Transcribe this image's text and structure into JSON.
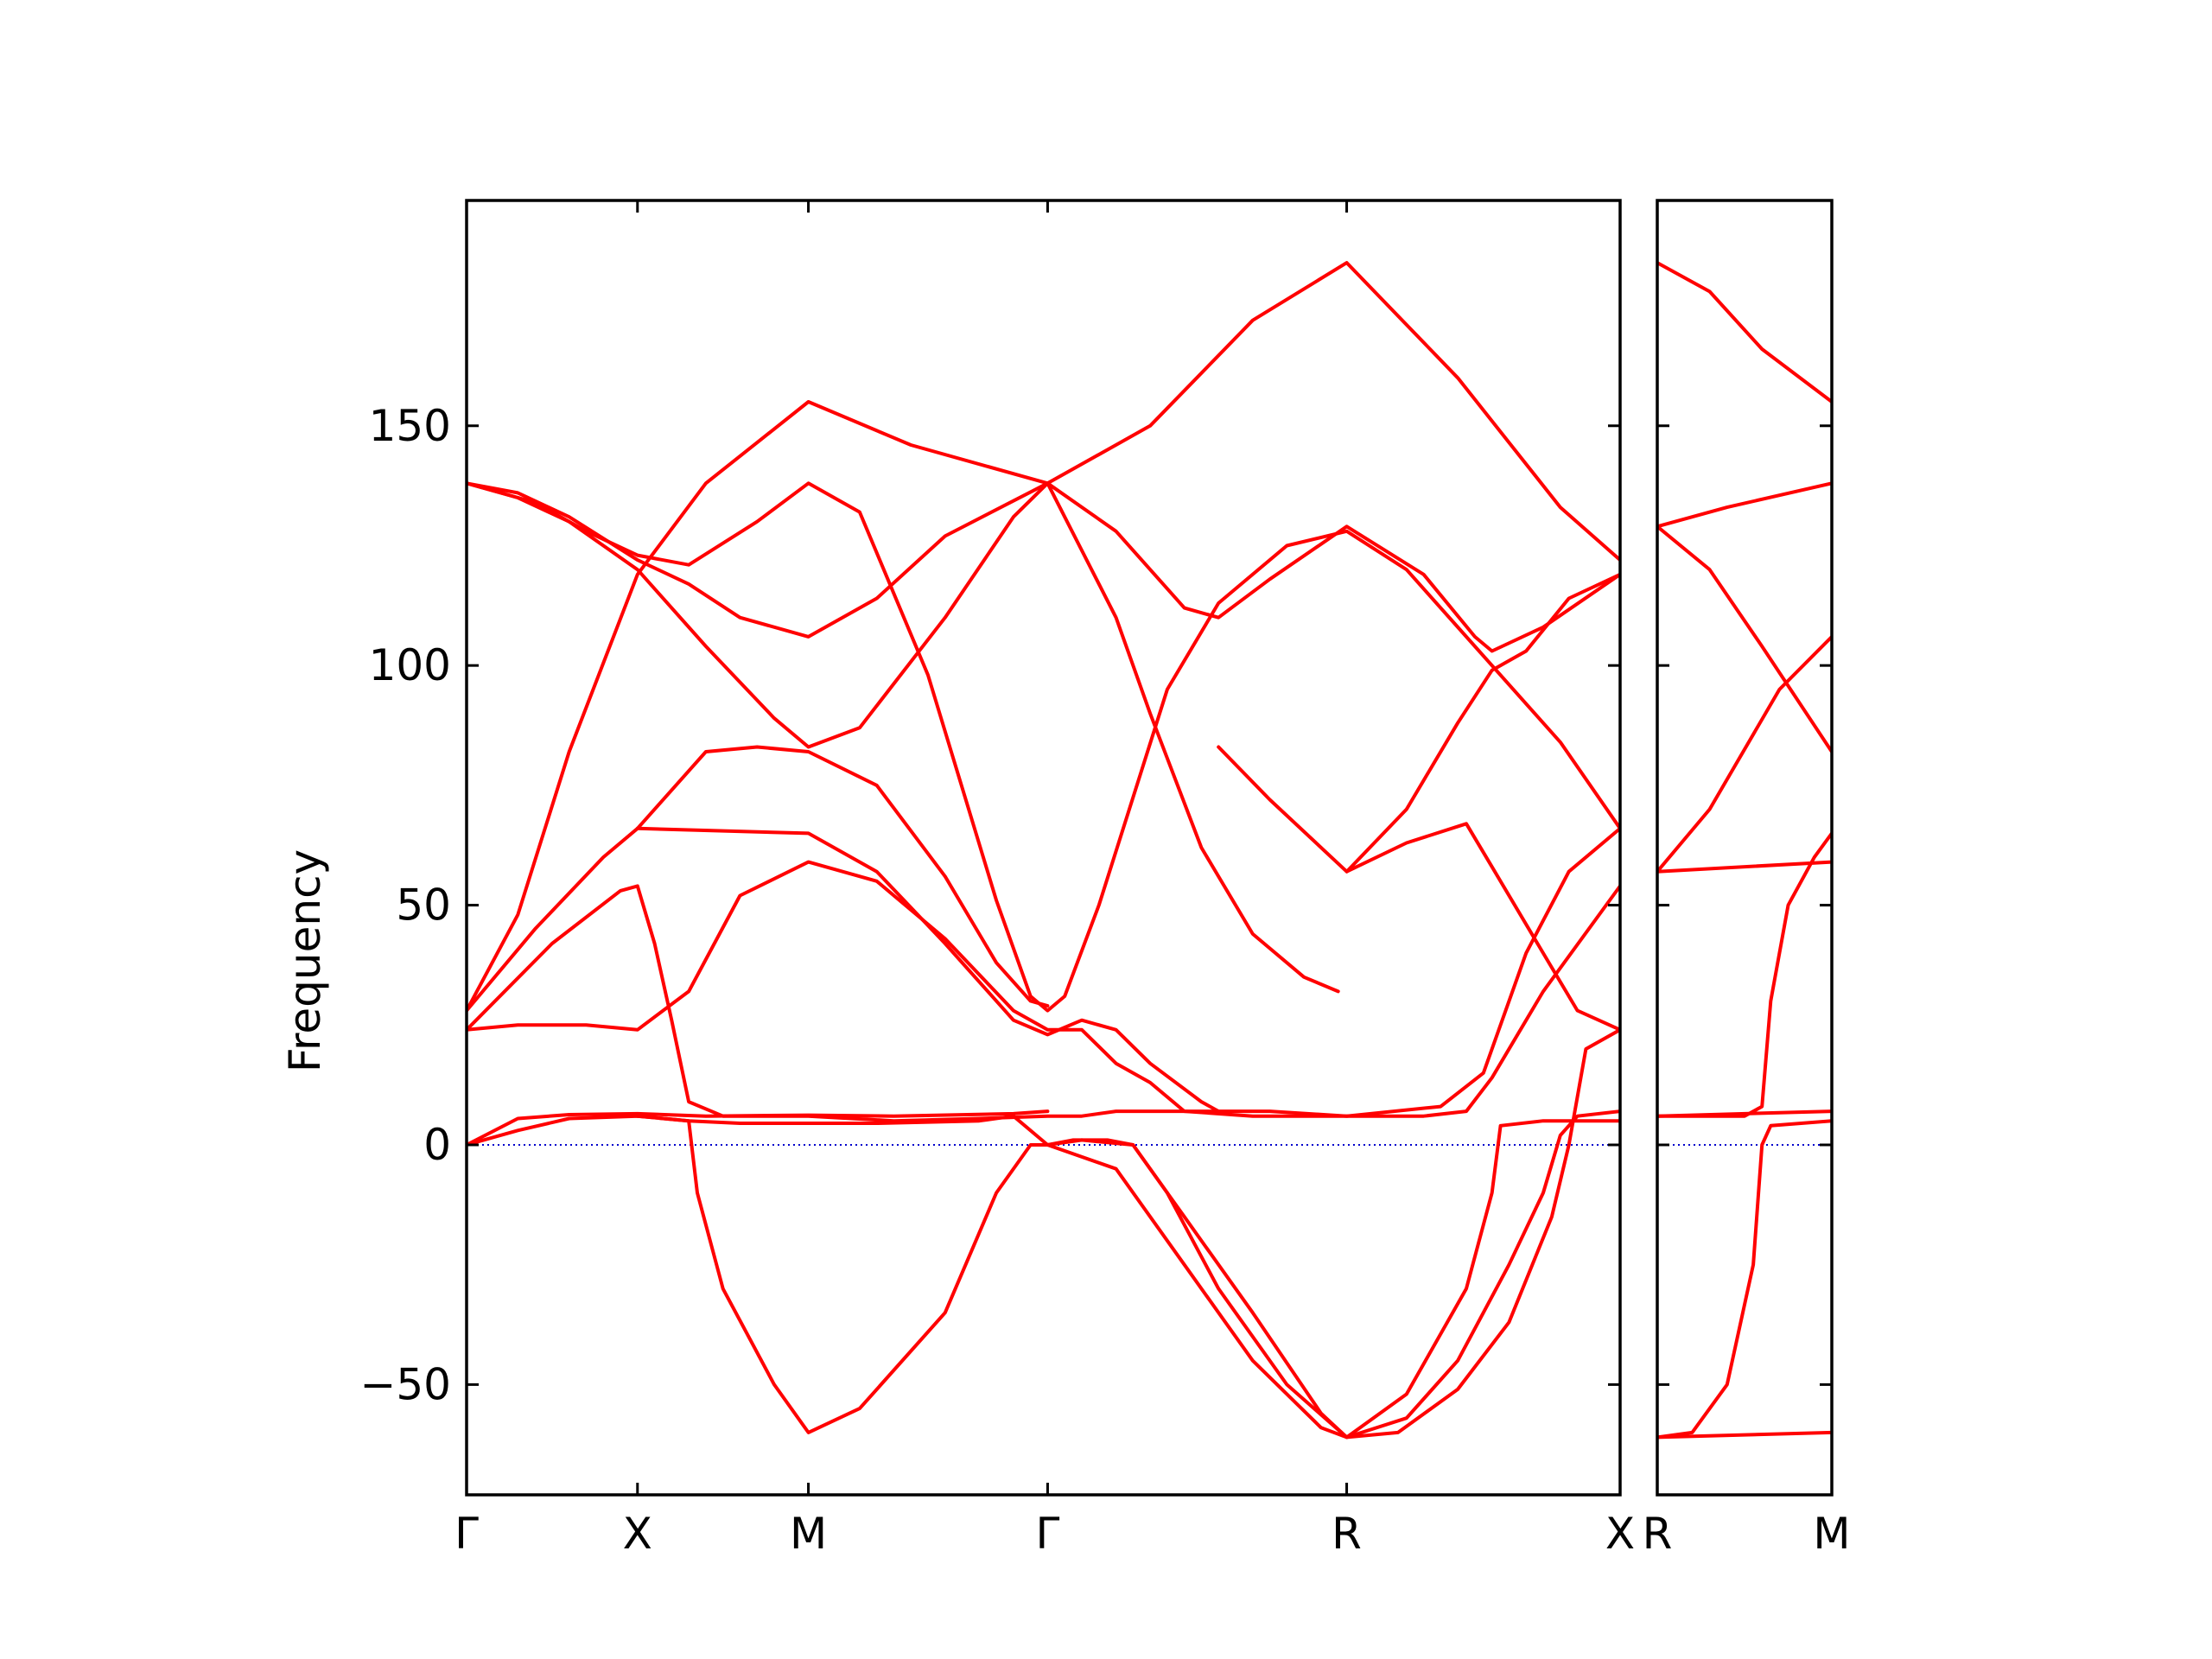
{
  "chart_data": {
    "type": "line",
    "ylabel": "Frequency",
    "ylim": [
      -73,
      197
    ],
    "yticks": [
      -50,
      0,
      50,
      100,
      150
    ],
    "ytick_labels": [
      "−50",
      "0",
      "50",
      "100",
      "150"
    ],
    "band_color": "#ff0000",
    "zero_line_color": "#0000cc",
    "panels": [
      {
        "xticks": [
          0,
          1,
          2,
          3.4,
          5.15,
          6.75
        ],
        "xtick_labels": [
          "Γ",
          "X",
          "M",
          "Γ",
          "R",
          "X"
        ],
        "xlim": [
          0,
          6.75
        ],
        "bands": [
          [
            [
              0,
              28
            ],
            [
              0.3,
              48
            ],
            [
              0.6,
              82
            ],
            [
              1,
              119
            ],
            [
              1.4,
              138
            ],
            [
              2,
              155
            ],
            [
              2.6,
              146
            ],
            [
              3.4,
              138
            ],
            [
              4,
              150
            ],
            [
              4.6,
              172
            ],
            [
              5.15,
              184
            ],
            [
              5.8,
              160
            ],
            [
              6.4,
              133
            ],
            [
              6.75,
              122
            ]
          ],
          [
            [
              0,
              138
            ],
            [
              0.3,
              136
            ],
            [
              0.6,
              131
            ],
            [
              1,
              122
            ],
            [
              1.3,
              117
            ],
            [
              1.6,
              110
            ],
            [
              2,
              106
            ],
            [
              2.4,
              114
            ],
            [
              2.8,
              127
            ],
            [
              3.4,
              138
            ],
            [
              3.8,
              128
            ],
            [
              4.2,
              112
            ],
            [
              4.4,
              110
            ],
            [
              4.7,
              118
            ],
            [
              5.15,
              129
            ],
            [
              5.6,
              119
            ],
            [
              5.9,
              106
            ],
            [
              6,
              103
            ],
            [
              6.3,
              108
            ],
            [
              6.75,
              119
            ]
          ],
          [
            [
              0,
              138
            ],
            [
              0.3,
              135
            ],
            [
              0.6,
              130
            ],
            [
              1,
              120
            ],
            [
              1.4,
              104
            ],
            [
              1.8,
              89
            ],
            [
              2,
              83
            ],
            [
              2.3,
              87
            ],
            [
              2.8,
              110
            ],
            [
              3.2,
              131
            ],
            [
              3.4,
              138
            ],
            [
              3.5,
              131
            ],
            [
              3.8,
              110
            ],
            [
              4,
              90
            ],
            [
              4.3,
              62
            ],
            [
              4.6,
              44
            ],
            [
              4.9,
              35
            ],
            [
              5.1,
              32
            ]
          ],
          [
            [
              0,
              138
            ],
            [
              0.4,
              134
            ],
            [
              0.7,
              128
            ],
            [
              1,
              123
            ],
            [
              1.3,
              121
            ],
            [
              1.7,
              130
            ],
            [
              2,
              138
            ],
            [
              2.3,
              132
            ],
            [
              2.7,
              98
            ],
            [
              3.1,
              51
            ],
            [
              3.3,
              31
            ],
            [
              3.4,
              28
            ],
            [
              3.5,
              31
            ],
            [
              3.7,
              50
            ],
            [
              4.1,
              95
            ],
            [
              4.4,
              113
            ],
            [
              4.8,
              125
            ],
            [
              5.15,
              128
            ],
            [
              5.5,
              120
            ],
            [
              5.9,
              104
            ],
            [
              6.4,
              84
            ],
            [
              6.75,
              66
            ]
          ],
          [
            [
              0,
              28
            ],
            [
              0.4,
              45
            ],
            [
              0.8,
              60
            ],
            [
              1,
              66
            ],
            [
              1.4,
              82
            ],
            [
              1.7,
              83
            ],
            [
              2,
              82
            ],
            [
              2.4,
              75
            ],
            [
              2.8,
              56
            ],
            [
              3.1,
              38
            ],
            [
              3.3,
              30
            ],
            [
              3.4,
              29
            ]
          ],
          [
            [
              0,
              24
            ],
            [
              0.5,
              42
            ],
            [
              0.9,
              53
            ],
            [
              1,
              54
            ],
            [
              1.1,
              42
            ],
            [
              1.2,
              26
            ],
            [
              1.3,
              9
            ],
            [
              1.5,
              6
            ],
            [
              2,
              6
            ],
            [
              2.5,
              5
            ],
            [
              3,
              5.5
            ],
            [
              3.4,
              6
            ],
            [
              3.6,
              6
            ],
            [
              3.8,
              7
            ],
            [
              4.3,
              7
            ],
            [
              4.7,
              7
            ],
            [
              5.15,
              6
            ],
            [
              5.6,
              6
            ],
            [
              5.85,
              7
            ],
            [
              6,
              14
            ],
            [
              6.3,
              32
            ],
            [
              6.75,
              54
            ]
          ],
          [
            [
              0,
              24
            ],
            [
              0.3,
              25
            ],
            [
              0.7,
              25
            ],
            [
              1,
              24
            ],
            [
              1.3,
              32
            ],
            [
              1.6,
              52
            ],
            [
              2,
              59
            ],
            [
              2.4,
              55
            ],
            [
              2.8,
              43
            ],
            [
              3.2,
              28
            ],
            [
              3.4,
              24
            ],
            [
              3.6,
              24
            ],
            [
              3.8,
              17
            ],
            [
              4,
              13
            ],
            [
              4.2,
              7
            ],
            [
              4.6,
              6
            ],
            [
              5.15,
              6
            ],
            [
              5.7,
              8
            ],
            [
              5.95,
              15
            ],
            [
              6.2,
              40
            ],
            [
              6.45,
              57
            ],
            [
              6.75,
              66
            ]
          ],
          [
            [
              1,
              66
            ],
            [
              2,
              65
            ],
            [
              2.4,
              57
            ],
            [
              2.8,
              42
            ],
            [
              3.2,
              26
            ],
            [
              3.4,
              23
            ],
            [
              3.6,
              26
            ],
            [
              3.8,
              24
            ],
            [
              4,
              17
            ],
            [
              4.3,
              9
            ],
            [
              4.4,
              7
            ]
          ],
          [
            [
              0,
              0
            ],
            [
              0.3,
              3
            ],
            [
              0.6,
              5.5
            ],
            [
              1,
              6
            ],
            [
              1.3,
              5
            ],
            [
              1.6,
              4.5
            ],
            [
              2,
              4.5
            ],
            [
              2.4,
              4.5
            ],
            [
              3,
              5
            ],
            [
              3.2,
              6
            ],
            [
              3.4,
              0
            ]
          ],
          [
            [
              0,
              0
            ],
            [
              0.3,
              5.5
            ],
            [
              0.6,
              6.3
            ],
            [
              1,
              6.5
            ],
            [
              1.4,
              6
            ],
            [
              2,
              6.2
            ],
            [
              2.5,
              6
            ],
            [
              3.2,
              6.5
            ],
            [
              3.4,
              7
            ]
          ],
          [
            [
              1,
              6
            ],
            [
              1.3,
              5
            ],
            [
              1.35,
              -10
            ],
            [
              1.5,
              -30
            ],
            [
              1.8,
              -50
            ],
            [
              2,
              -60
            ],
            [
              2.3,
              -55
            ],
            [
              2.8,
              -35
            ],
            [
              3.1,
              -10
            ],
            [
              3.3,
              0
            ],
            [
              3.4,
              0
            ]
          ],
          [
            [
              3.4,
              0
            ],
            [
              3.55,
              1
            ],
            [
              3.75,
              1
            ],
            [
              3.9,
              0
            ],
            [
              4.1,
              -10
            ],
            [
              4.4,
              -30
            ],
            [
              4.8,
              -50
            ],
            [
              5.15,
              -61
            ],
            [
              5.5,
              -57
            ],
            [
              5.8,
              -45
            ],
            [
              6.1,
              -25
            ],
            [
              6.3,
              -10
            ],
            [
              6.4,
              2
            ],
            [
              6.5,
              6
            ],
            [
              6.75,
              7
            ]
          ],
          [
            [
              3.4,
              0
            ],
            [
              3.6,
              1
            ],
            [
              3.9,
              0
            ],
            [
              4.2,
              -15
            ],
            [
              4.6,
              -35
            ],
            [
              5,
              -56
            ],
            [
              5.15,
              -61
            ],
            [
              5.5,
              -52
            ],
            [
              5.85,
              -30
            ],
            [
              6,
              -10
            ],
            [
              6.05,
              4
            ],
            [
              6.3,
              5
            ],
            [
              6.75,
              5
            ]
          ],
          [
            [
              3.4,
              0
            ],
            [
              3.8,
              -5
            ],
            [
              4.2,
              -25
            ],
            [
              4.6,
              -45
            ],
            [
              5,
              -59
            ],
            [
              5.15,
              -61
            ],
            [
              5.45,
              -60
            ],
            [
              5.8,
              -51
            ],
            [
              6.1,
              -37
            ],
            [
              6.35,
              -15
            ],
            [
              6.45,
              0
            ],
            [
              6.55,
              20
            ],
            [
              6.75,
              24
            ]
          ],
          [
            [
              4.4,
              83
            ],
            [
              4.7,
              72
            ],
            [
              5.15,
              57
            ],
            [
              5.5,
              63
            ],
            [
              5.85,
              67
            ],
            [
              6,
              58
            ],
            [
              6.3,
              40
            ],
            [
              6.5,
              28
            ],
            [
              6.75,
              24
            ]
          ],
          [
            [
              5.15,
              57
            ],
            [
              5.5,
              70
            ],
            [
              5.8,
              88
            ],
            [
              6,
              99
            ],
            [
              6.2,
              103
            ],
            [
              6.45,
              114
            ],
            [
              6.75,
              119
            ]
          ]
        ]
      },
      {
        "xticks": [
          0,
          1
        ],
        "xtick_labels": [
          "R",
          "M"
        ],
        "xlim": [
          0,
          1
        ],
        "bands": [
          [
            [
              0,
              184
            ],
            [
              0.3,
              178
            ],
            [
              0.6,
              166
            ],
            [
              1,
              155
            ]
          ],
          [
            [
              0,
              129
            ],
            [
              0.4,
              133
            ],
            [
              1,
              138
            ]
          ],
          [
            [
              0,
              129
            ],
            [
              0.3,
              120
            ],
            [
              0.6,
              104
            ],
            [
              1,
              82
            ]
          ],
          [
            [
              0,
              57
            ],
            [
              0.3,
              70
            ],
            [
              0.7,
              95
            ],
            [
              1,
              106
            ]
          ],
          [
            [
              0,
              57
            ],
            [
              1,
              59
            ]
          ],
          [
            [
              0,
              6
            ],
            [
              0.5,
              6
            ],
            [
              0.6,
              8
            ],
            [
              0.65,
              30
            ],
            [
              0.75,
              50
            ],
            [
              0.9,
              60
            ],
            [
              1,
              65
            ]
          ],
          [
            [
              0,
              6
            ],
            [
              1,
              7
            ]
          ],
          [
            [
              0,
              -61
            ],
            [
              0.2,
              -60
            ],
            [
              0.4,
              -50
            ],
            [
              0.55,
              -25
            ],
            [
              0.6,
              0
            ],
            [
              0.65,
              4
            ],
            [
              1,
              5
            ]
          ],
          [
            [
              0,
              -61
            ],
            [
              1,
              -60
            ]
          ]
        ]
      }
    ]
  }
}
